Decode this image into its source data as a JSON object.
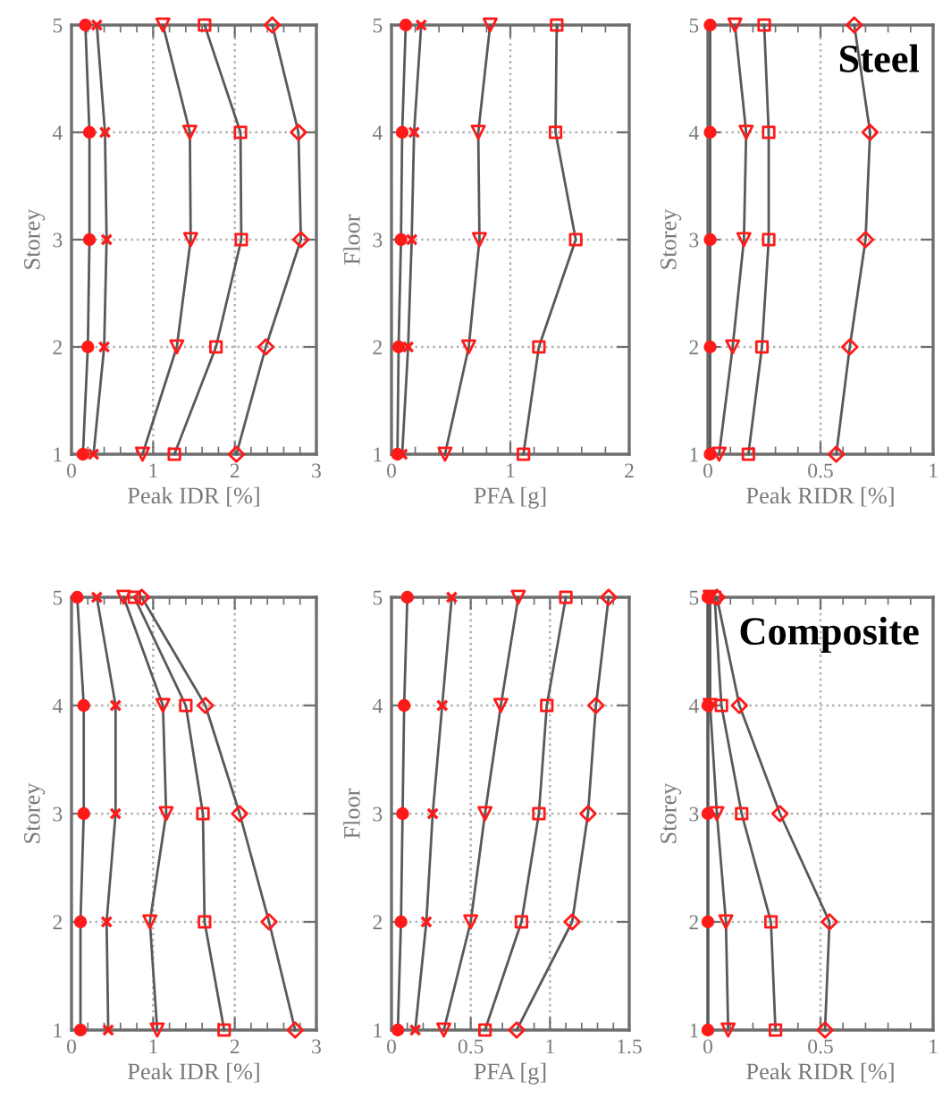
{
  "chart_data": [
    {
      "type": "line",
      "xlabel": "Peak IDR [%]",
      "ylabel": "Storey",
      "xlim": [
        0,
        3
      ],
      "xticks": [
        0,
        1,
        2,
        3
      ],
      "ylim": [
        1,
        5
      ],
      "yticks": [
        1,
        2,
        3,
        4,
        5
      ],
      "grid": true,
      "line_style": "solid",
      "series": [
        {
          "marker": "circle",
          "color": "#595959",
          "colors": [
            "#ff1a1a",
            "#ff1a1a",
            "#ff1a1a",
            "#ff1a1a",
            "#ff1a1a"
          ],
          "x": [
            0.14,
            0.2,
            0.22,
            0.22,
            0.17
          ],
          "values": [
            1,
            2,
            3,
            4,
            5
          ]
        },
        {
          "marker": "cross",
          "color": "#595959",
          "colors": [
            "#ff1a1a",
            "#ff1a1a",
            "#ff1a1a",
            "#ff1a1a",
            "#ff1a1a"
          ],
          "x": [
            0.27,
            0.4,
            0.43,
            0.41,
            0.31
          ],
          "values": [
            1,
            2,
            3,
            4,
            5
          ]
        },
        {
          "marker": "triangle",
          "color": "#595959",
          "colors": [
            "#ff1a1a",
            "#ff1a1a",
            "#ff1a1a",
            "#ff1a1a",
            "#ff1a1a"
          ],
          "x": [
            0.87,
            1.29,
            1.46,
            1.45,
            1.12
          ],
          "values": [
            1,
            2,
            3,
            4,
            5
          ]
        },
        {
          "marker": "square",
          "color": "#595959",
          "colors": [
            "#ff1a1a",
            "#ff1a1a",
            "#ff1a1a",
            "#ff1a1a",
            "#ff1a1a"
          ],
          "x": [
            1.26,
            1.77,
            2.08,
            2.07,
            1.63
          ],
          "values": [
            1,
            2,
            3,
            4,
            5
          ]
        },
        {
          "marker": "diamond",
          "color": "#595959",
          "colors": [
            "#ff1a1a",
            "#ff1a1a",
            "#ff1a1a",
            "#ff1a1a",
            "#ff1a1a"
          ],
          "x": [
            2.02,
            2.38,
            2.81,
            2.78,
            2.46
          ],
          "values": [
            1,
            2,
            3,
            4,
            5
          ]
        }
      ]
    },
    {
      "type": "line",
      "xlabel": "PFA [g]",
      "ylabel": "Floor",
      "xlim": [
        0,
        2
      ],
      "xticks": [
        0,
        1,
        2
      ],
      "ylim": [
        1,
        5
      ],
      "yticks": [
        1,
        2,
        3,
        4,
        5
      ],
      "grid": true,
      "line_style": "solid",
      "series": [
        {
          "marker": "circle",
          "color": "#595959",
          "colors": [
            "#ff1a1a",
            "#ff1a1a",
            "#ff1a1a",
            "#ff1a1a",
            "#ff1a1a"
          ],
          "x": [
            0.05,
            0.06,
            0.08,
            0.09,
            0.12
          ],
          "values": [
            1,
            2,
            3,
            4,
            5
          ]
        },
        {
          "marker": "cross",
          "color": "#595959",
          "colors": [
            "#ff1a1a",
            "#ff1a1a",
            "#ff1a1a",
            "#ff1a1a",
            "#ff1a1a"
          ],
          "x": [
            0.09,
            0.14,
            0.17,
            0.19,
            0.25
          ],
          "values": [
            1,
            2,
            3,
            4,
            5
          ]
        },
        {
          "marker": "triangle",
          "color": "#595959",
          "colors": [
            "#ff1a1a",
            "#ff1a1a",
            "#ff1a1a",
            "#ff1a1a",
            "#ff1a1a"
          ],
          "x": [
            0.45,
            0.65,
            0.74,
            0.73,
            0.83
          ],
          "values": [
            1,
            2,
            3,
            4,
            5
          ]
        },
        {
          "marker": "square",
          "color": "#595959",
          "colors": [
            "#ff1a1a",
            "#ff1a1a",
            "#ff1a1a",
            "#ff1a1a",
            "#ff1a1a"
          ],
          "x": [
            1.11,
            1.24,
            1.55,
            1.38,
            1.39
          ],
          "values": [
            1,
            2,
            3,
            4,
            5
          ]
        }
      ]
    },
    {
      "type": "line",
      "xlabel": "Peak RIDR [%]",
      "ylabel": "Storey",
      "xlim": [
        0,
        1
      ],
      "xticks": [
        0,
        0.5,
        1
      ],
      "ylim": [
        1,
        5
      ],
      "yticks": [
        1,
        2,
        3,
        4,
        5
      ],
      "grid": true,
      "line_style": "solid",
      "annotations": [
        "Steel"
      ],
      "series": [
        {
          "marker": "circle",
          "color": "#595959",
          "colors": [
            "#ff1a1a",
            "#ff1a1a",
            "#ff1a1a",
            "#ff1a1a",
            "#ff1a1a"
          ],
          "x": [
            0.01,
            0.01,
            0.01,
            0.01,
            0.01
          ],
          "values": [
            1,
            2,
            3,
            4,
            5
          ]
        },
        {
          "marker": "triangle",
          "color": "#595959",
          "colors": [
            "#ff1a1a",
            "#ff1a1a",
            "#ff1a1a",
            "#ff1a1a",
            "#ff1a1a"
          ],
          "x": [
            0.05,
            0.11,
            0.16,
            0.17,
            0.12
          ],
          "values": [
            1,
            2,
            3,
            4,
            5
          ]
        },
        {
          "marker": "square",
          "color": "#595959",
          "colors": [
            "#ff1a1a",
            "#ff1a1a",
            "#ff1a1a",
            "#ff1a1a",
            "#ff1a1a"
          ],
          "x": [
            0.18,
            0.24,
            0.27,
            0.27,
            0.25
          ],
          "values": [
            1,
            2,
            3,
            4,
            5
          ]
        },
        {
          "marker": "diamond",
          "color": "#595959",
          "colors": [
            "#ff1a1a",
            "#ff1a1a",
            "#ff1a1a",
            "#ff1a1a",
            "#ff1a1a"
          ],
          "x": [
            0.57,
            0.63,
            0.7,
            0.72,
            0.65
          ],
          "values": [
            1,
            2,
            3,
            4,
            5
          ]
        }
      ]
    },
    {
      "type": "line",
      "xlabel": "Peak IDR [%]",
      "ylabel": "Storey",
      "xlim": [
        0,
        3
      ],
      "xticks": [
        0,
        1,
        2,
        3
      ],
      "ylim": [
        1,
        5
      ],
      "yticks": [
        1,
        2,
        3,
        4,
        5
      ],
      "grid": true,
      "line_style": "solid",
      "series": [
        {
          "marker": "circle",
          "color": "#595959",
          "colors": [
            "#ff1a1a",
            "#ff1a1a",
            "#ff1a1a",
            "#ff1a1a",
            "#ff1a1a"
          ],
          "x": [
            0.11,
            0.11,
            0.15,
            0.15,
            0.07
          ],
          "values": [
            1,
            2,
            3,
            4,
            5
          ]
        },
        {
          "marker": "cross",
          "color": "#595959",
          "colors": [
            "#ff1a1a",
            "#ff1a1a",
            "#ff1a1a",
            "#ff1a1a",
            "#ff1a1a"
          ],
          "x": [
            0.45,
            0.43,
            0.54,
            0.54,
            0.31
          ],
          "values": [
            1,
            2,
            3,
            4,
            5
          ]
        },
        {
          "marker": "triangle",
          "color": "#595959",
          "colors": [
            "#ff1a1a",
            "#ff1a1a",
            "#ff1a1a",
            "#ff1a1a",
            "#ff1a1a"
          ],
          "x": [
            1.05,
            0.96,
            1.16,
            1.12,
            0.64
          ],
          "values": [
            1,
            2,
            3,
            4,
            5
          ]
        },
        {
          "marker": "square",
          "color": "#595959",
          "colors": [
            "#ff1a1a",
            "#ff1a1a",
            "#ff1a1a",
            "#ff1a1a",
            "#ff1a1a"
          ],
          "x": [
            1.87,
            1.63,
            1.61,
            1.4,
            0.77
          ],
          "values": [
            1,
            2,
            3,
            4,
            5
          ]
        },
        {
          "marker": "diamond",
          "color": "#595959",
          "colors": [
            "#ff1a1a",
            "#ff1a1a",
            "#ff1a1a",
            "#ff1a1a",
            "#ff1a1a"
          ],
          "x": [
            2.74,
            2.42,
            2.06,
            1.64,
            0.86
          ],
          "values": [
            1,
            2,
            3,
            4,
            5
          ]
        }
      ]
    },
    {
      "type": "line",
      "xlabel": "PFA [g]",
      "ylabel": "Floor",
      "xlim": [
        0,
        1.5
      ],
      "xticks": [
        0,
        0.5,
        1,
        1.5
      ],
      "ylim": [
        1,
        5
      ],
      "yticks": [
        1,
        2,
        3,
        4,
        5
      ],
      "grid": true,
      "line_style": "solid",
      "series": [
        {
          "marker": "circle",
          "color": "#595959",
          "colors": [
            "#ff1a1a",
            "#ff1a1a",
            "#ff1a1a",
            "#ff1a1a",
            "#ff1a1a"
          ],
          "x": [
            0.04,
            0.06,
            0.07,
            0.08,
            0.1
          ],
          "values": [
            1,
            2,
            3,
            4,
            5
          ]
        },
        {
          "marker": "cross",
          "color": "#595959",
          "colors": [
            "#ff1a1a",
            "#ff1a1a",
            "#ff1a1a",
            "#ff1a1a",
            "#ff1a1a"
          ],
          "x": [
            0.15,
            0.22,
            0.26,
            0.32,
            0.38
          ],
          "values": [
            1,
            2,
            3,
            4,
            5
          ]
        },
        {
          "marker": "triangle",
          "color": "#595959",
          "colors": [
            "#ff1a1a",
            "#ff1a1a",
            "#ff1a1a",
            "#ff1a1a",
            "#ff1a1a"
          ],
          "x": [
            0.33,
            0.5,
            0.59,
            0.69,
            0.8
          ],
          "values": [
            1,
            2,
            3,
            4,
            5
          ]
        },
        {
          "marker": "square",
          "color": "#595959",
          "colors": [
            "#ff1a1a",
            "#ff1a1a",
            "#ff1a1a",
            "#ff1a1a",
            "#ff1a1a"
          ],
          "x": [
            0.59,
            0.82,
            0.93,
            0.98,
            1.1
          ],
          "values": [
            1,
            2,
            3,
            4,
            5
          ]
        },
        {
          "marker": "diamond",
          "color": "#595959",
          "colors": [
            "#ff1a1a",
            "#ff1a1a",
            "#ff1a1a",
            "#ff1a1a",
            "#ff1a1a"
          ],
          "x": [
            0.79,
            1.14,
            1.24,
            1.29,
            1.37
          ],
          "values": [
            1,
            2,
            3,
            4,
            5
          ]
        }
      ]
    },
    {
      "type": "line",
      "xlabel": "Peak RIDR [%]",
      "ylabel": "Storey",
      "xlim": [
        0,
        1
      ],
      "xticks": [
        0,
        0.5,
        1
      ],
      "ylim": [
        1,
        5
      ],
      "yticks": [
        1,
        2,
        3,
        4,
        5
      ],
      "grid": true,
      "line_style": "solid",
      "annotations": [
        "Composite"
      ],
      "series": [
        {
          "marker": "circle",
          "color": "#595959",
          "colors": [
            "#ff1a1a",
            "#ff1a1a",
            "#ff1a1a",
            "#ff1a1a",
            "#ff1a1a"
          ],
          "x": [
            0,
            0,
            0,
            0,
            0
          ],
          "values": [
            1,
            2,
            3,
            4,
            5
          ]
        },
        {
          "marker": "triangle",
          "color": "#595959",
          "colors": [
            "#ff1a1a",
            "#ff1a1a",
            "#ff1a1a",
            "#ff1a1a",
            "#ff1a1a"
          ],
          "x": [
            0.09,
            0.08,
            0.04,
            0.01,
            0.01
          ],
          "values": [
            1,
            2,
            3,
            4,
            5
          ]
        },
        {
          "marker": "square",
          "color": "#595959",
          "colors": [
            "#ff1a1a",
            "#ff1a1a",
            "#ff1a1a",
            "#ff1a1a",
            "#ff1a1a"
          ],
          "x": [
            0.3,
            0.28,
            0.15,
            0.06,
            0.03
          ],
          "values": [
            1,
            2,
            3,
            4,
            5
          ]
        },
        {
          "marker": "diamond",
          "color": "#595959",
          "colors": [
            "#ff1a1a",
            "#ff1a1a",
            "#ff1a1a",
            "#ff1a1a",
            "#ff1a1a"
          ],
          "x": [
            0.52,
            0.54,
            0.32,
            0.14,
            0.04
          ],
          "values": [
            1,
            2,
            3,
            4,
            5
          ]
        }
      ]
    }
  ]
}
